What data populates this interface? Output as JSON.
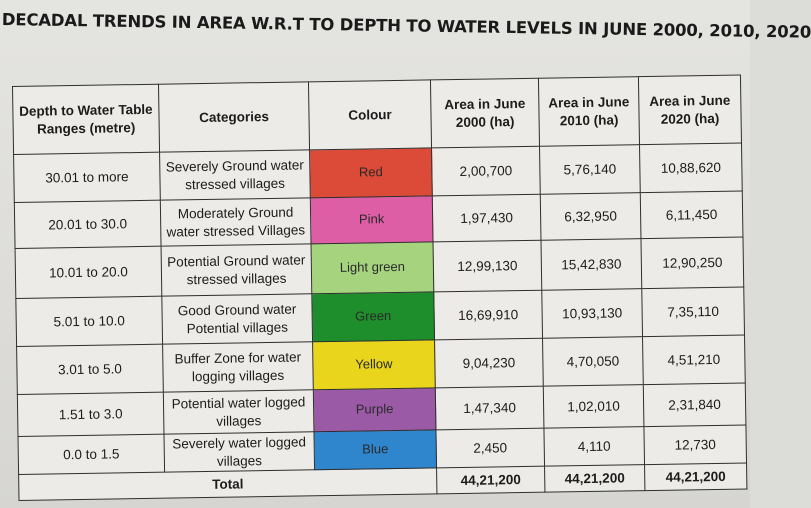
{
  "title": "DECADAL TRENDS IN AREA W.R.T TO DEPTH TO WATER LEVELS IN JUNE 2000, 2010, 2020",
  "table": {
    "headers": {
      "depth": "Depth to Water Table Ranges (metre)",
      "categories": "Categories",
      "colour": "Colour",
      "area2000": "Area in June 2000 (ha)",
      "area2010": "Area in June 2010 (ha)",
      "area2020": "Area in June 2020 (ha)"
    },
    "rows": [
      {
        "depth": "30.01 to more",
        "category": "Severely Ground water stressed villages",
        "colour": "Red",
        "hex": "#dc4a38",
        "a2000": "2,00,700",
        "a2010": "5,76,140",
        "a2020": "10,88,620"
      },
      {
        "depth": "20.01 to 30.0",
        "category": "Moderately Ground water stressed Villages",
        "colour": "Pink",
        "hex": "#de5ea6",
        "a2000": "1,97,430",
        "a2010": "6,32,950",
        "a2020": "6,11,450"
      },
      {
        "depth": "10.01 to 20.0",
        "category": "Potential Ground water stressed villages",
        "colour": "Light green",
        "hex": "#a6d47e",
        "a2000": "12,99,130",
        "a2010": "15,42,830",
        "a2020": "12,90,250"
      },
      {
        "depth": "5.01 to 10.0",
        "category": "Good Ground water Potential villages",
        "colour": "Green",
        "hex": "#1e8e2c",
        "a2000": "16,69,910",
        "a2010": "10,93,130",
        "a2020": "7,35,110"
      },
      {
        "depth": "3.01 to 5.0",
        "category": "Buffer Zone for water logging villages",
        "colour": "Yellow",
        "hex": "#e8d51c",
        "a2000": "9,04,230",
        "a2010": "4,70,050",
        "a2020": "4,51,210"
      },
      {
        "depth": "1.51 to 3.0",
        "category": "Potential water logged villages",
        "colour": "Purple",
        "hex": "#9a5aa6",
        "a2000": "1,47,340",
        "a2010": "1,02,010",
        "a2020": "2,31,840"
      },
      {
        "depth": "0.0 to 1.5",
        "category": "Severely water logged villages",
        "colour": "Blue",
        "hex": "#2f86cc",
        "a2000": "2,450",
        "a2010": "4,110",
        "a2020": "12,730"
      }
    ],
    "total": {
      "label": "Total",
      "a2000": "44,21,200",
      "a2010": "44,21,200",
      "a2020": "44,21,200"
    }
  }
}
